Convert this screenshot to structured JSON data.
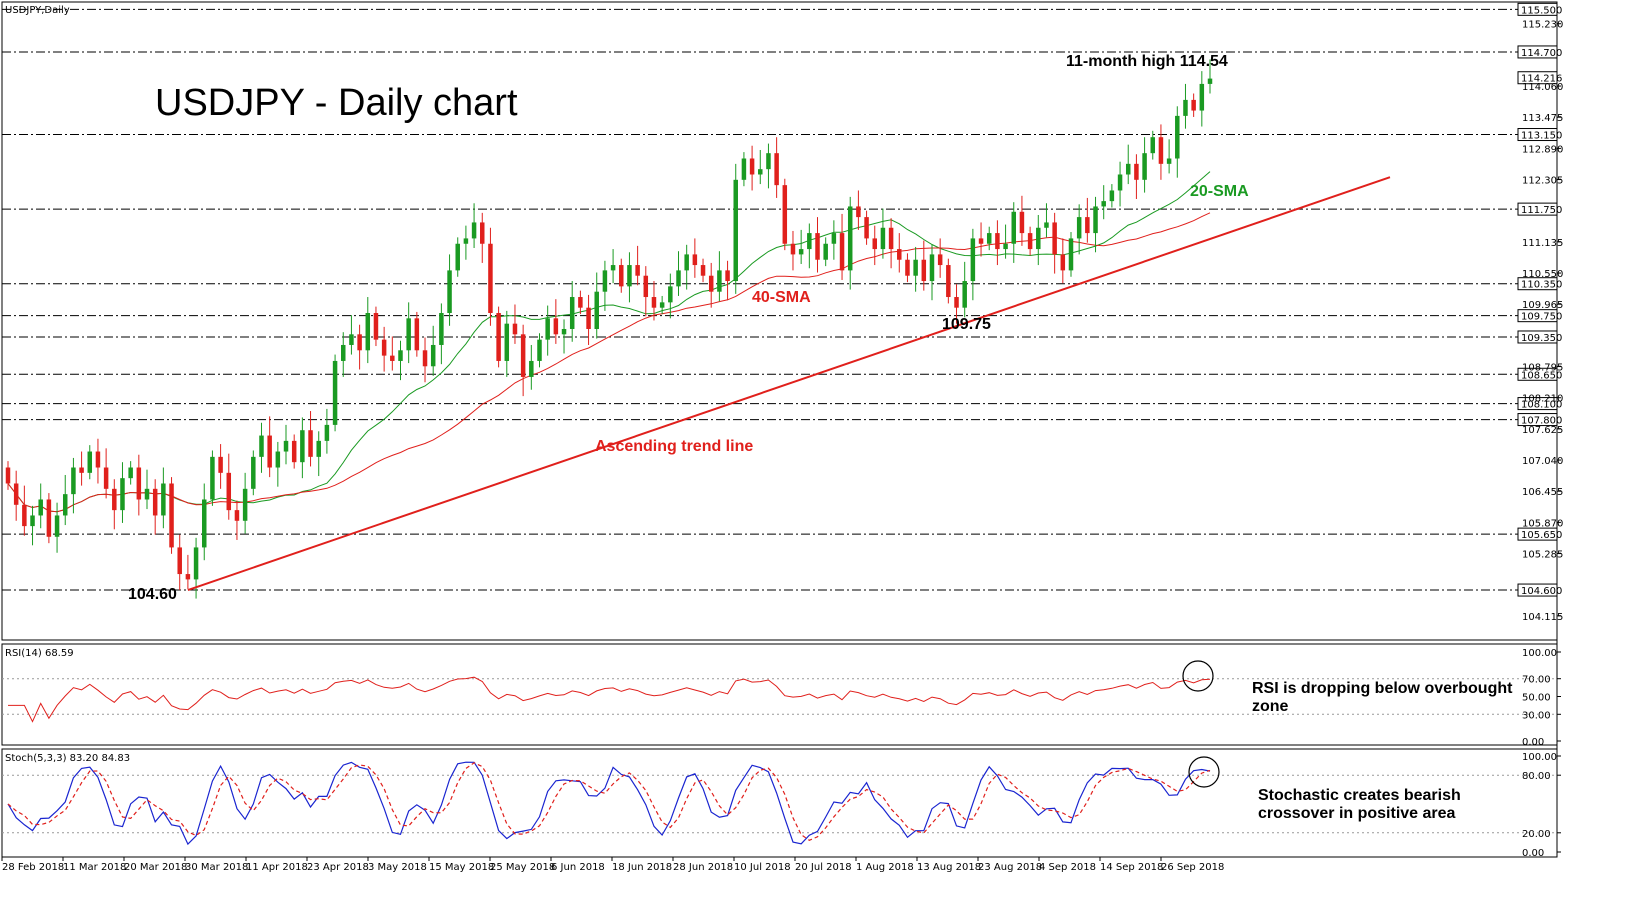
{
  "symbol_label": "USDJPY,Daily",
  "title": "USDJPY - Daily chart",
  "colors": {
    "up": "#1a9a22",
    "down": "#e0201c",
    "sma20": "#1a9a22",
    "sma40": "#e0201c",
    "trend": "#e0201c",
    "rsi": "#e0201c",
    "stoch_k": "#1a25d0",
    "stoch_d": "#e0201c"
  },
  "chart_data": [
    {
      "type": "candlestick",
      "title": "USDJPY - Daily chart",
      "ylim": [
        103.7,
        115.6
      ],
      "y_ticks": [
        "115.230",
        "114.060",
        "113.475",
        "112.890",
        "112.305",
        "111.135",
        "110.550",
        "109.965",
        "108.795",
        "108.210",
        "107.625",
        "107.040",
        "106.455",
        "105.870",
        "105.285",
        "104.115"
      ],
      "level_lines": [
        115.5,
        114.7,
        113.15,
        111.75,
        110.35,
        109.75,
        109.35,
        108.65,
        108.1,
        107.8,
        105.65,
        104.6
      ],
      "level_labels": [
        "115.500",
        "114.700",
        "113.150",
        "111.750",
        "110.350",
        "109.750",
        "109.350",
        "108.650",
        "108.100",
        "107.800",
        "105.650",
        "104.600"
      ],
      "current_price": 114.216,
      "current_price_label": "114.216",
      "x_labels": [
        "28 Feb 2018",
        "11 Mar 2018",
        "20 Mar 2018",
        "30 Mar 2018",
        "11 Apr 2018",
        "23 Apr 2018",
        "3 May 2018",
        "15 May 2018",
        "25 May 2018",
        "6 Jun 2018",
        "18 Jun 2018",
        "28 Jun 2018",
        "10 Jul 2018",
        "20 Jul 2018",
        "1 Aug 2018",
        "13 Aug 2018",
        "23 Aug 2018",
        "4 Sep 2018",
        "14 Sep 2018",
        "26 Sep 2018"
      ],
      "closes": [
        106.6,
        106.2,
        105.8,
        106.0,
        106.3,
        105.6,
        106.0,
        106.4,
        106.9,
        106.8,
        107.2,
        106.9,
        106.5,
        106.1,
        106.7,
        106.9,
        106.3,
        106.5,
        106.0,
        106.6,
        105.4,
        104.9,
        104.8,
        105.4,
        106.3,
        107.1,
        106.8,
        106.1,
        105.9,
        106.5,
        107.1,
        107.5,
        106.9,
        107.2,
        107.4,
        107.0,
        107.6,
        107.1,
        107.4,
        107.7,
        108.9,
        109.2,
        109.4,
        109.1,
        109.8,
        109.3,
        109.0,
        108.9,
        109.1,
        109.7,
        109.1,
        108.8,
        109.2,
        109.8,
        110.6,
        111.1,
        111.2,
        111.5,
        111.1,
        109.8,
        108.9,
        109.6,
        109.4,
        108.6,
        108.9,
        109.3,
        109.7,
        109.4,
        109.5,
        110.1,
        109.9,
        109.5,
        110.2,
        110.6,
        110.7,
        110.3,
        110.7,
        110.5,
        110.1,
        109.9,
        110.0,
        110.3,
        110.6,
        110.9,
        110.7,
        110.5,
        110.2,
        110.6,
        110.4,
        112.3,
        112.7,
        112.4,
        112.5,
        112.8,
        112.2,
        111.1,
        110.9,
        111.0,
        111.3,
        110.8,
        111.1,
        111.3,
        110.6,
        111.8,
        111.6,
        111.2,
        111.0,
        111.4,
        111.0,
        110.8,
        110.5,
        110.8,
        110.4,
        110.9,
        110.7,
        110.1,
        109.9,
        110.4,
        111.2,
        111.1,
        111.3,
        111.0,
        111.1,
        111.7,
        111.3,
        111.0,
        111.4,
        111.5,
        110.9,
        110.6,
        111.2,
        111.6,
        111.3,
        111.8,
        111.9,
        112.1,
        112.4,
        112.6,
        112.3,
        112.8,
        113.1,
        112.6,
        112.7,
        113.5,
        113.8,
        113.6,
        114.1,
        114.2
      ],
      "extremes": [
        {
          "label": "104.60",
          "value": 104.6
        },
        {
          "label": "109.75",
          "value": 109.75
        },
        {
          "label": "11-month high 114.54",
          "value": 114.54
        }
      ],
      "annotations": [
        "Ascending trend line",
        "40-SMA",
        "20-SMA"
      ]
    },
    {
      "type": "line",
      "title": "RSI(14) 68.59",
      "ylim": [
        0,
        100
      ],
      "y_ticks": [
        "100.00",
        "70.00",
        "50.00",
        "30.00",
        "0.00"
      ],
      "levels": [
        70,
        30
      ],
      "annotation": "RSI is dropping below overbought zone"
    },
    {
      "type": "line",
      "title": "Stoch(5,3,3) 83.20 84.83",
      "ylim": [
        0,
        100
      ],
      "y_ticks": [
        "100.00",
        "80.00",
        "20.00",
        "0.00"
      ],
      "levels": [
        80,
        20
      ],
      "annotation": "Stochastic creates bearish crossover in positive area"
    }
  ]
}
